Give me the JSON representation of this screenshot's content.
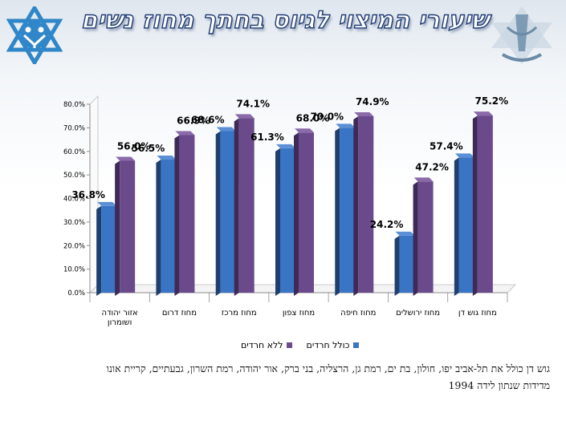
{
  "title": "שיעורי המיצוי לגיוס בחתך מחוז נשים",
  "colors": {
    "series1": "#3a74c4",
    "series2": "#6b4a8c",
    "title_outline": "#1f3a73"
  },
  "chart_data": {
    "type": "bar",
    "title": "שיעורי המיצוי לגיוס בחתך מחוז נשים",
    "categories": [
      "אזור יהודה ושומרון",
      "מחוז דרום",
      "מחוז מרכז",
      "מחוז צפון",
      "מחוז חיפה",
      "מחוז ירושלים",
      "מחוז גוש דן"
    ],
    "series": [
      {
        "name": "כולל חרדים",
        "values": [
          36.8,
          56.5,
          68.6,
          61.3,
          70.0,
          24.2,
          57.4
        ],
        "labels": [
          "36.8%",
          "56.5%",
          "68.6%",
          "61.3%",
          "70.0%",
          "24.2%",
          "57.4%"
        ]
      },
      {
        "name": "ללא חרדים",
        "values": [
          56.0,
          66.9,
          74.1,
          68.0,
          74.9,
          47.2,
          75.2
        ],
        "labels": [
          "56.0%",
          "66.9%",
          "74.1%",
          "68.0%",
          "74.9%",
          "47.2%",
          "75.2%"
        ]
      }
    ],
    "yticks": [
      "0.0%",
      "10.0%",
      "20.0%",
      "30.0%",
      "40.0%",
      "50.0%",
      "60.0%",
      "70.0%",
      "80.0%"
    ],
    "ylim": [
      0,
      80
    ],
    "legend_position": "bottom",
    "grid": false
  },
  "legend": {
    "series1": "כולל חרדים",
    "series2": "ללא חרדים"
  },
  "footnote": {
    "line1": "גוש דן כולל את תל-אביב יפו, חולון, בת ים, רמת גן, הרצליה, בני ברק, אור יהודה, רמת השרון, גבעתיים, קריית אונו",
    "line2": "מדידות שנתון לידה 1994"
  }
}
